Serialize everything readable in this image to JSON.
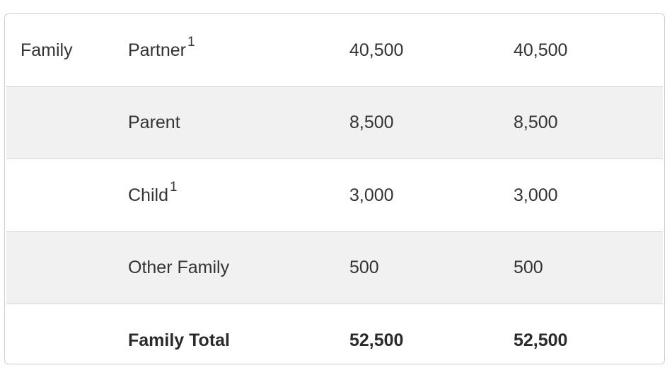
{
  "table": {
    "rows": [
      {
        "group": "Family",
        "item": "Partner",
        "note": "1",
        "value1": "40,500",
        "value2": "40,500"
      },
      {
        "group": "",
        "item": "Parent",
        "note": "",
        "value1": "8,500",
        "value2": "8,500"
      },
      {
        "group": "",
        "item": "Child",
        "note": "1",
        "value1": "3,000",
        "value2": "3,000"
      },
      {
        "group": "",
        "item": "Other Family",
        "note": "",
        "value1": "500",
        "value2": "500"
      },
      {
        "group": "",
        "item": "Family Total",
        "note": "",
        "value1": "52,500",
        "value2": "52,500"
      }
    ]
  }
}
